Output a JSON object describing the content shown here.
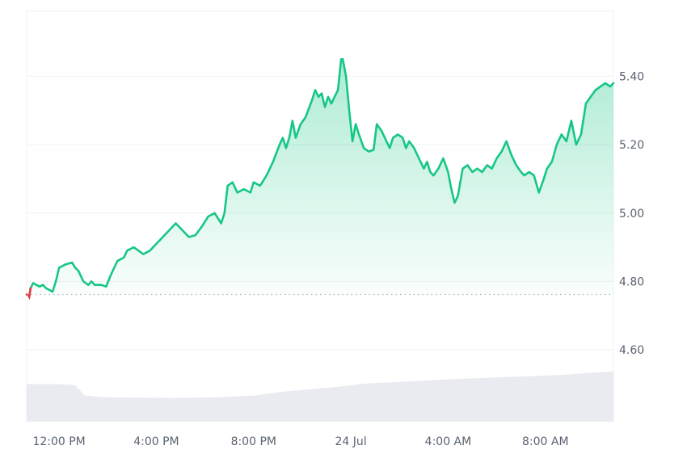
{
  "chart_data": {
    "type": "area",
    "price_series": {
      "color": "#16c784",
      "down_color": "#ea3943",
      "reference_value": 4.762,
      "points": [
        [
          0,
          4.762
        ],
        [
          0.05,
          4.76
        ],
        [
          0.08,
          4.755
        ],
        [
          0.12,
          4.78
        ],
        [
          0.2,
          4.795
        ],
        [
          0.3,
          4.79
        ],
        [
          0.4,
          4.785
        ],
        [
          0.5,
          4.79
        ],
        [
          0.6,
          4.78
        ],
        [
          0.7,
          4.775
        ],
        [
          0.8,
          4.77
        ],
        [
          0.9,
          4.8
        ],
        [
          1.0,
          4.84
        ],
        [
          1.2,
          4.85
        ],
        [
          1.4,
          4.855
        ],
        [
          1.5,
          4.84
        ],
        [
          1.6,
          4.83
        ],
        [
          1.75,
          4.8
        ],
        [
          1.9,
          4.79
        ],
        [
          2.0,
          4.8
        ],
        [
          2.1,
          4.79
        ],
        [
          2.3,
          4.79
        ],
        [
          2.45,
          4.785
        ],
        [
          2.6,
          4.82
        ],
        [
          2.8,
          4.86
        ],
        [
          3.0,
          4.87
        ],
        [
          3.1,
          4.89
        ],
        [
          3.3,
          4.9
        ],
        [
          3.45,
          4.89
        ],
        [
          3.6,
          4.88
        ],
        [
          3.8,
          4.89
        ],
        [
          4.0,
          4.91
        ],
        [
          4.2,
          4.93
        ],
        [
          4.4,
          4.95
        ],
        [
          4.6,
          4.97
        ],
        [
          4.8,
          4.95
        ],
        [
          5.0,
          4.93
        ],
        [
          5.2,
          4.935
        ],
        [
          5.4,
          4.96
        ],
        [
          5.6,
          4.99
        ],
        [
          5.8,
          5.0
        ],
        [
          6.0,
          4.97
        ],
        [
          6.1,
          5.0
        ],
        [
          6.2,
          5.08
        ],
        [
          6.35,
          5.09
        ],
        [
          6.5,
          5.06
        ],
        [
          6.7,
          5.07
        ],
        [
          6.9,
          5.06
        ],
        [
          7.0,
          5.09
        ],
        [
          7.2,
          5.08
        ],
        [
          7.4,
          5.11
        ],
        [
          7.6,
          5.15
        ],
        [
          7.8,
          5.2
        ],
        [
          7.9,
          5.22
        ],
        [
          8.0,
          5.19
        ],
        [
          8.1,
          5.22
        ],
        [
          8.2,
          5.27
        ],
        [
          8.3,
          5.22
        ],
        [
          8.45,
          5.26
        ],
        [
          8.6,
          5.28
        ],
        [
          8.8,
          5.33
        ],
        [
          8.9,
          5.36
        ],
        [
          9.0,
          5.34
        ],
        [
          9.1,
          5.35
        ],
        [
          9.2,
          5.31
        ],
        [
          9.3,
          5.34
        ],
        [
          9.4,
          5.32
        ],
        [
          9.5,
          5.34
        ],
        [
          9.6,
          5.36
        ],
        [
          9.7,
          5.45
        ],
        [
          9.75,
          5.45
        ],
        [
          9.85,
          5.4
        ],
        [
          9.95,
          5.3
        ],
        [
          10.05,
          5.21
        ],
        [
          10.15,
          5.26
        ],
        [
          10.25,
          5.23
        ],
        [
          10.4,
          5.19
        ],
        [
          10.55,
          5.18
        ],
        [
          10.7,
          5.185
        ],
        [
          10.8,
          5.26
        ],
        [
          10.95,
          5.24
        ],
        [
          11.1,
          5.21
        ],
        [
          11.2,
          5.19
        ],
        [
          11.3,
          5.22
        ],
        [
          11.45,
          5.23
        ],
        [
          11.6,
          5.22
        ],
        [
          11.7,
          5.19
        ],
        [
          11.8,
          5.21
        ],
        [
          11.95,
          5.19
        ],
        [
          12.1,
          5.16
        ],
        [
          12.25,
          5.13
        ],
        [
          12.35,
          5.15
        ],
        [
          12.45,
          5.12
        ],
        [
          12.55,
          5.11
        ],
        [
          12.7,
          5.13
        ],
        [
          12.85,
          5.16
        ],
        [
          13.0,
          5.12
        ],
        [
          13.1,
          5.07
        ],
        [
          13.2,
          5.03
        ],
        [
          13.3,
          5.05
        ],
        [
          13.45,
          5.13
        ],
        [
          13.6,
          5.14
        ],
        [
          13.75,
          5.12
        ],
        [
          13.9,
          5.13
        ],
        [
          14.05,
          5.12
        ],
        [
          14.2,
          5.14
        ],
        [
          14.35,
          5.13
        ],
        [
          14.5,
          5.16
        ],
        [
          14.65,
          5.18
        ],
        [
          14.8,
          5.21
        ],
        [
          14.95,
          5.17
        ],
        [
          15.1,
          5.14
        ],
        [
          15.25,
          5.12
        ],
        [
          15.35,
          5.11
        ],
        [
          15.5,
          5.12
        ],
        [
          15.65,
          5.11
        ],
        [
          15.8,
          5.06
        ],
        [
          15.95,
          5.1
        ],
        [
          16.05,
          5.13
        ],
        [
          16.2,
          5.15
        ],
        [
          16.35,
          5.2
        ],
        [
          16.5,
          5.23
        ],
        [
          16.65,
          5.21
        ],
        [
          16.8,
          5.27
        ],
        [
          16.95,
          5.2
        ],
        [
          17.1,
          5.23
        ],
        [
          17.25,
          5.32
        ],
        [
          17.4,
          5.34
        ],
        [
          17.55,
          5.36
        ],
        [
          17.7,
          5.37
        ],
        [
          17.85,
          5.38
        ],
        [
          18.0,
          5.37
        ],
        [
          18.1,
          5.38
        ]
      ]
    },
    "volume_series": {
      "color": "#e9ebf0",
      "points": [
        [
          0,
          0.62
        ],
        [
          1.0,
          0.62
        ],
        [
          1.5,
          0.6
        ],
        [
          1.8,
          0.43
        ],
        [
          2.5,
          0.4
        ],
        [
          4.5,
          0.39
        ],
        [
          5.8,
          0.4
        ],
        [
          7.0,
          0.43
        ],
        [
          8.0,
          0.5
        ],
        [
          9.5,
          0.57
        ],
        [
          10.5,
          0.63
        ],
        [
          12.0,
          0.67
        ],
        [
          13.5,
          0.71
        ],
        [
          15.0,
          0.74
        ],
        [
          16.5,
          0.77
        ],
        [
          17.5,
          0.81
        ],
        [
          18.1,
          0.83
        ]
      ]
    },
    "y_axis": {
      "ticks": [
        5.4,
        5.2,
        5.0,
        4.8,
        4.6
      ],
      "tick_labels": [
        "5.40",
        "5.20",
        "5.00",
        "4.80",
        "4.60"
      ],
      "range": [
        4.39,
        5.59
      ],
      "grid": true
    },
    "x_axis": {
      "range": [
        0,
        18.1
      ],
      "ticks": [
        1.0,
        4.0,
        7.0,
        10.0,
        13.0,
        16.0
      ],
      "tick_labels": [
        "12:00 PM",
        "4:00 PM",
        "8:00 PM",
        "24 Jul",
        "4:00 AM",
        "8:00 AM"
      ]
    },
    "colors": {
      "grid": "#eff2f5",
      "axis_text": "#5a6370",
      "reference_line": "#a6b0c3"
    }
  }
}
